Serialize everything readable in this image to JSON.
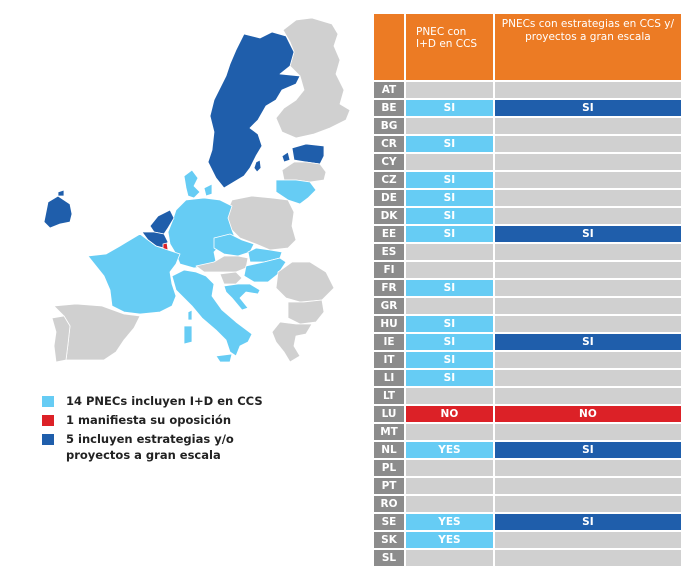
{
  "colors": {
    "light_blue": "#66ccf4",
    "dark_blue": "#1f5eab",
    "red": "#dc2127",
    "grey": "#d0d0d0",
    "code_grey": "#8c8c8c",
    "orange": "#ec7b24"
  },
  "legend": [
    {
      "color": "light_blue",
      "label": "14 PNECs incluyen I+D en CCS"
    },
    {
      "color": "red",
      "label": "1 manifiesta su oposición"
    },
    {
      "color": "dark_blue",
      "label": "5 incluyen estrategias y/o proyectos a gran escala"
    }
  ],
  "table": {
    "headers": [
      "",
      "PNEC con I+D en CCS",
      "PNECs con estrategias en CCS y/ proyectos a gran escala"
    ],
    "rows": [
      {
        "code": "AT",
        "col1": "",
        "col1_status": "empty",
        "col2": "",
        "col2_status": "empty"
      },
      {
        "code": "BE",
        "col1": "SI",
        "col1_status": "light",
        "col2": "SI",
        "col2_status": "dark"
      },
      {
        "code": "BG",
        "col1": "",
        "col1_status": "empty",
        "col2": "",
        "col2_status": "empty"
      },
      {
        "code": "CR",
        "col1": "SI",
        "col1_status": "light",
        "col2": "",
        "col2_status": "empty"
      },
      {
        "code": "CY",
        "col1": "",
        "col1_status": "empty",
        "col2": "",
        "col2_status": "empty"
      },
      {
        "code": "CZ",
        "col1": "SI",
        "col1_status": "light",
        "col2": "",
        "col2_status": "empty"
      },
      {
        "code": "DE",
        "col1": "SI",
        "col1_status": "light",
        "col2": "",
        "col2_status": "empty"
      },
      {
        "code": "DK",
        "col1": "SI",
        "col1_status": "light",
        "col2": "",
        "col2_status": "empty"
      },
      {
        "code": "EE",
        "col1": "SI",
        "col1_status": "light",
        "col2": "SI",
        "col2_status": "dark"
      },
      {
        "code": "ES",
        "col1": "",
        "col1_status": "empty",
        "col2": "",
        "col2_status": "empty"
      },
      {
        "code": "FI",
        "col1": "",
        "col1_status": "empty",
        "col2": "",
        "col2_status": "empty"
      },
      {
        "code": "FR",
        "col1": "SI",
        "col1_status": "light",
        "col2": "",
        "col2_status": "empty"
      },
      {
        "code": "GR",
        "col1": "",
        "col1_status": "empty",
        "col2": "",
        "col2_status": "empty"
      },
      {
        "code": "HU",
        "col1": "SI",
        "col1_status": "light",
        "col2": "",
        "col2_status": "empty"
      },
      {
        "code": "IE",
        "col1": "SI",
        "col1_status": "light",
        "col2": "SI",
        "col2_status": "dark"
      },
      {
        "code": "IT",
        "col1": "SI",
        "col1_status": "light",
        "col2": "",
        "col2_status": "empty"
      },
      {
        "code": "LI",
        "col1": "SI",
        "col1_status": "light",
        "col2": "",
        "col2_status": "empty"
      },
      {
        "code": "LT",
        "col1": "",
        "col1_status": "empty",
        "col2": "",
        "col2_status": "empty"
      },
      {
        "code": "LU",
        "col1": "NO",
        "col1_status": "red",
        "col2": "NO",
        "col2_status": "red"
      },
      {
        "code": "MT",
        "col1": "",
        "col1_status": "empty",
        "col2": "",
        "col2_status": "empty"
      },
      {
        "code": "NL",
        "col1": "YES",
        "col1_status": "light",
        "col2": "SI",
        "col2_status": "dark"
      },
      {
        "code": "PL",
        "col1": "",
        "col1_status": "empty",
        "col2": "",
        "col2_status": "empty"
      },
      {
        "code": "PT",
        "col1": "",
        "col1_status": "empty",
        "col2": "",
        "col2_status": "empty"
      },
      {
        "code": "RO",
        "col1": "",
        "col1_status": "empty",
        "col2": "",
        "col2_status": "empty"
      },
      {
        "code": "SE",
        "col1": "YES",
        "col1_status": "light",
        "col2": "SI",
        "col2_status": "dark"
      },
      {
        "code": "SK",
        "col1": "YES",
        "col1_status": "light",
        "col2": "",
        "col2_status": "empty"
      },
      {
        "code": "SL",
        "col1": "",
        "col1_status": "empty",
        "col2": "",
        "col2_status": "empty"
      }
    ]
  },
  "map": {
    "countries": [
      {
        "name": "Ireland",
        "status": "dark"
      },
      {
        "name": "Sweden",
        "status": "dark"
      },
      {
        "name": "Estonia",
        "status": "dark"
      },
      {
        "name": "Netherlands",
        "status": "dark"
      },
      {
        "name": "Belgium",
        "status": "dark"
      },
      {
        "name": "Luxembourg",
        "status": "red"
      },
      {
        "name": "Finland",
        "status": "empty"
      },
      {
        "name": "Latvia",
        "status": "empty"
      },
      {
        "name": "Lithuania",
        "status": "light"
      },
      {
        "name": "Denmark",
        "status": "light"
      },
      {
        "name": "Germany",
        "status": "light"
      },
      {
        "name": "Poland",
        "status": "empty"
      },
      {
        "name": "France",
        "status": "light"
      },
      {
        "name": "Czechia",
        "status": "light"
      },
      {
        "name": "Slovakia",
        "status": "light"
      },
      {
        "name": "Austria",
        "status": "empty"
      },
      {
        "name": "Hungary",
        "status": "light"
      },
      {
        "name": "Slovenia",
        "status": "empty"
      },
      {
        "name": "Croatia",
        "status": "light"
      },
      {
        "name": "Italy",
        "status": "light"
      },
      {
        "name": "Romania",
        "status": "empty"
      },
      {
        "name": "Bulgaria",
        "status": "empty"
      },
      {
        "name": "Greece",
        "status": "empty"
      },
      {
        "name": "Spain",
        "status": "empty"
      },
      {
        "name": "Portugal",
        "status": "empty"
      }
    ]
  }
}
